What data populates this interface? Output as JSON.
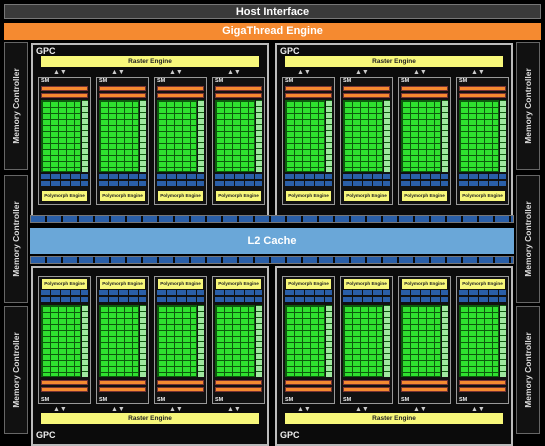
{
  "host_interface": "Host Interface",
  "gigathread": "GigaThread Engine",
  "memory_controller": "Memory Controller",
  "gpc_label": "GPC",
  "raster_engine": "Raster Engine",
  "polymorph_engine": "Polymorph Engine",
  "sm_label": "SM",
  "l2_cache": "L2 Cache",
  "colors": {
    "orange": "#f58a30",
    "yellow": "#f7f77a",
    "green": "#2fe02f",
    "blue": "#2a5fa8",
    "l2": "#6aa7d8"
  }
}
